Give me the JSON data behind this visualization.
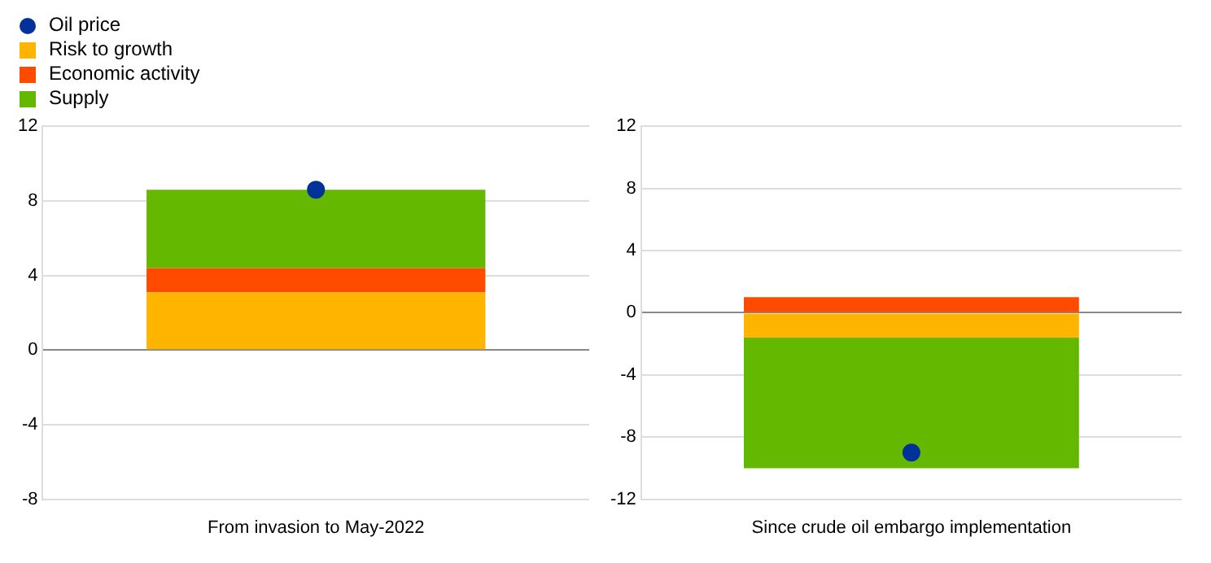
{
  "chart_data": [
    {
      "type": "bar",
      "stacked": true,
      "legend": "top left",
      "grid": "y",
      "categories": [
        "From invasion to May-2022"
      ],
      "ylim": [
        -8,
        12
      ],
      "yticks": [
        -8,
        -4,
        0,
        4,
        8,
        12
      ],
      "series": [
        {
          "name": "Oil price",
          "type": "scatter",
          "marker": "circle",
          "color": "#003299",
          "x": [
            "From invasion to May-2022"
          ],
          "values": [
            8.6
          ]
        },
        {
          "name": "Risk to growth",
          "color": "#ffb400",
          "values": [
            3.1
          ]
        },
        {
          "name": "Economic activity",
          "color": "#ff4b00",
          "values": [
            1.3
          ]
        },
        {
          "name": "Supply",
          "color": "#65b800",
          "values": [
            4.2
          ]
        }
      ]
    },
    {
      "type": "bar",
      "stacked": true,
      "grid": "y",
      "categories": [
        "Since crude oil embargo implementation"
      ],
      "ylim": [
        -12,
        12
      ],
      "yticks": [
        -12,
        -8,
        -4,
        0,
        4,
        8,
        12
      ],
      "series": [
        {
          "type": "scatter",
          "marker": "circle",
          "color": "#003299",
          "x": [
            "Since crude oil embargo implementation"
          ],
          "values": [
            -9.0
          ]
        },
        {
          "color": "#ffb400",
          "values": [
            -1.6
          ]
        },
        {
          "color": "#ff4b00",
          "values": [
            1.0
          ]
        },
        {
          "color": "#65b800",
          "values": [
            -8.4
          ]
        }
      ]
    }
  ]
}
